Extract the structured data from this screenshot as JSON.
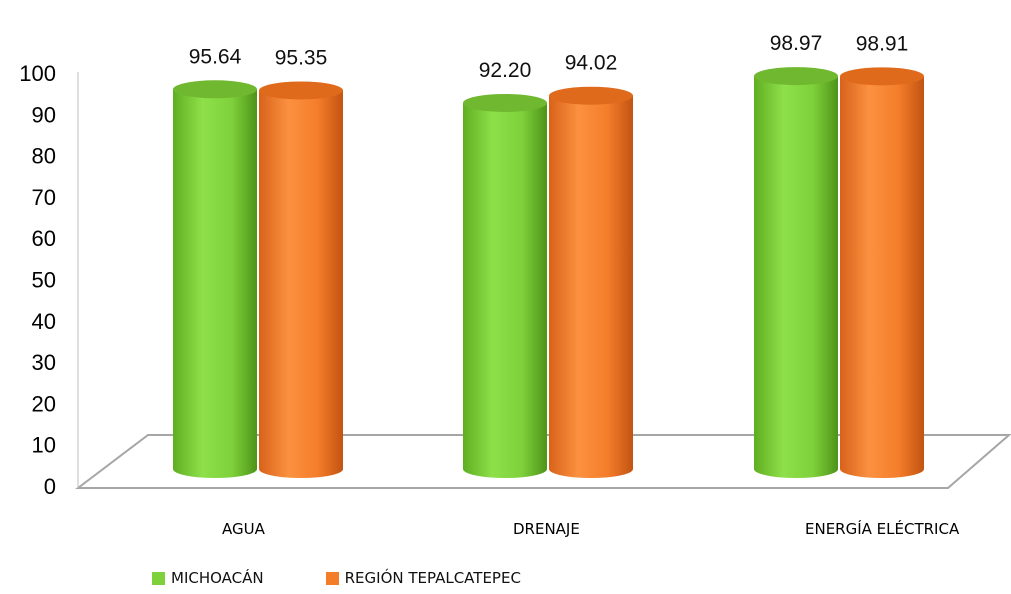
{
  "chart_data": {
    "type": "bar",
    "style": "3d-cylinder",
    "categories": [
      "AGUA",
      "DRENAJE",
      "ENERGÍA ELÉCTRICA"
    ],
    "series": [
      {
        "name": "MICHOACÁN",
        "values": [
          95.64,
          92.2,
          98.97
        ],
        "value_labels": [
          "95.64",
          "92.20",
          "98.97"
        ],
        "color": "#7fd13b"
      },
      {
        "name": "REGIÓN TEPALCATEPEC",
        "values": [
          95.35,
          94.02,
          98.91
        ],
        "value_labels": [
          "95.35",
          "94.02",
          "98.91"
        ],
        "color": "#f47d2a"
      }
    ],
    "ylim": [
      0,
      100
    ],
    "yticks": [
      "0",
      "10",
      "20",
      "30",
      "40",
      "50",
      "60",
      "70",
      "80",
      "90",
      "100"
    ],
    "grid": false,
    "legend": "bottom"
  }
}
